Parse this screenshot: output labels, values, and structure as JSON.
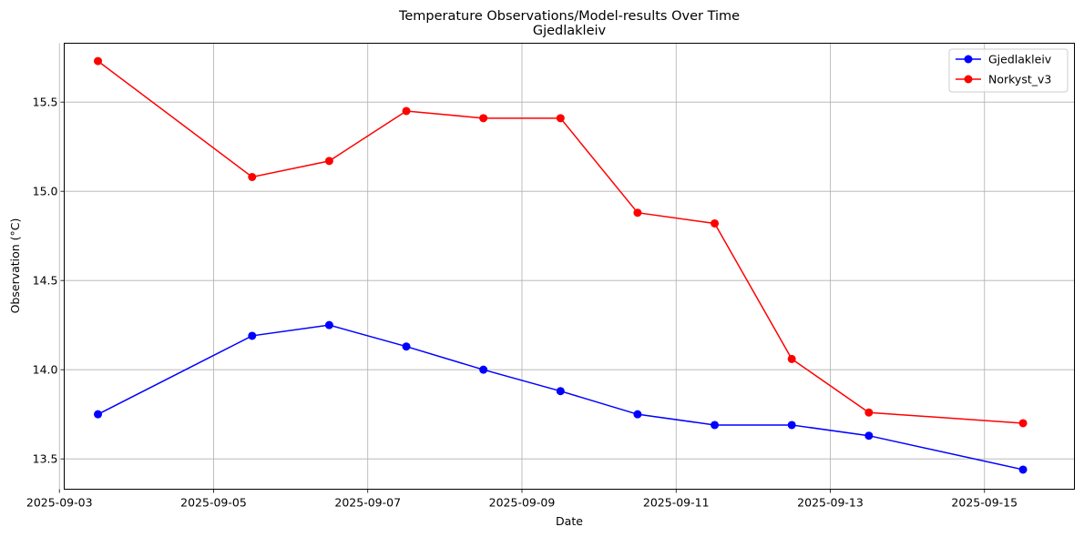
{
  "chart_data": {
    "type": "line",
    "title": "Temperature Observations/Model-results Over Time",
    "subtitle": "Gjedlakleiv",
    "xlabel": "Date",
    "ylabel": "Observation (°C)",
    "xlim": [
      "2025-09-03T01:30",
      "2025-09-16T04:00"
    ],
    "ylim": [
      13.33,
      15.83
    ],
    "x_ticks": [
      "2025-09-03",
      "2025-09-05",
      "2025-09-07",
      "2025-09-09",
      "2025-09-11",
      "2025-09-13",
      "2025-09-15"
    ],
    "y_ticks": [
      13.5,
      14.0,
      14.5,
      15.0,
      15.5
    ],
    "y_tick_labels": [
      "13.5",
      "14.0",
      "14.5",
      "15.0",
      "15.5"
    ],
    "grid": true,
    "legend_position": "top-right",
    "x": [
      "2025-09-03T12:00",
      "2025-09-05T12:00",
      "2025-09-06T12:00",
      "2025-09-07T12:00",
      "2025-09-08T12:00",
      "2025-09-09T12:00",
      "2025-09-10T12:00",
      "2025-09-11T12:00",
      "2025-09-12T12:00",
      "2025-09-13T12:00",
      "2025-09-15T12:00"
    ],
    "series": [
      {
        "name": "Gjedlakleiv",
        "color": "#0000ff",
        "values": [
          13.75,
          14.19,
          14.25,
          14.13,
          14.0,
          13.88,
          13.75,
          13.69,
          13.69,
          13.63,
          13.44
        ]
      },
      {
        "name": "Norkyst_v3",
        "color": "#ff0000",
        "values": [
          15.73,
          15.08,
          15.17,
          15.45,
          15.41,
          15.41,
          14.88,
          14.82,
          14.06,
          13.76,
          13.7
        ]
      }
    ]
  }
}
